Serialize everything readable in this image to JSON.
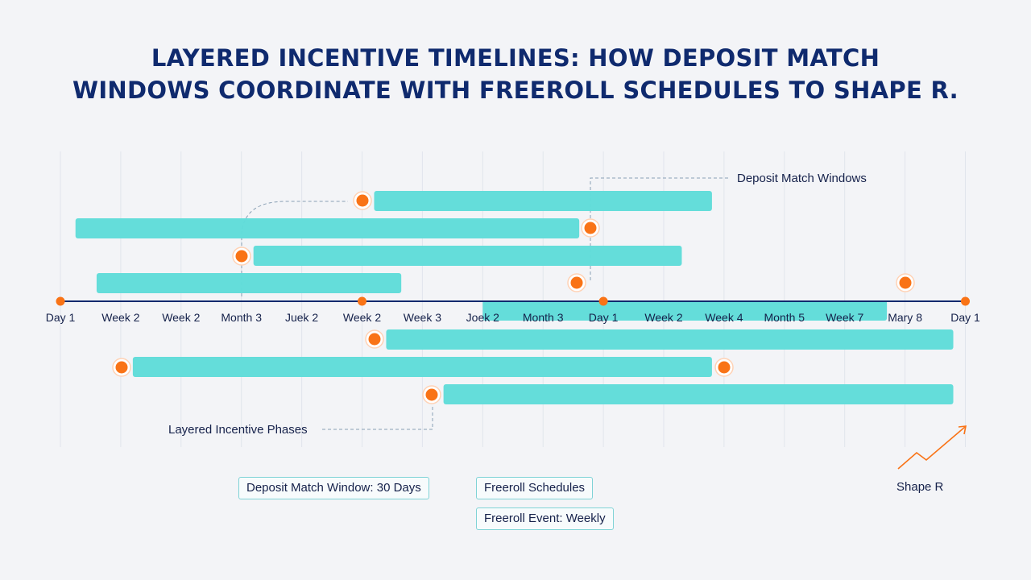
{
  "title": {
    "line1": "LAYERED INCENTIVE TIMELINES: HOW DEPOSIT MATCH",
    "line2": "WINDOWS COORDINATE WITH FREEROLL SCHEDULES TO SHAPE R."
  },
  "axis_ticks": [
    "Day 1",
    "Week 2",
    "Week 2",
    "Month 3",
    "Juek 2",
    "Week 2",
    "Week 3",
    "Joek 2",
    "Month 3",
    "Day 1",
    "Week 2",
    "Week 4",
    "Month 5",
    "Week 7",
    "Mary 8",
    "Day 1"
  ],
  "axis_markers": [
    0,
    5,
    9,
    15
  ],
  "bars_above": [
    {
      "start": 5.2,
      "end": 10.8
    },
    {
      "start": 0.25,
      "end": 8.6
    },
    {
      "start": 3.2,
      "end": 10.3
    },
    {
      "start": 0.6,
      "end": 5.65
    },
    {
      "start": 7.0,
      "end": 13.7
    }
  ],
  "bars_below": [
    {
      "start": 5.4,
      "end": 14.8
    },
    {
      "start": 1.2,
      "end": 10.8
    },
    {
      "start": 6.35,
      "end": 14.8
    }
  ],
  "callouts": {
    "deposit_match_windows": "Deposit Match Windows",
    "layered_incentive_phases": "Layered Incentive Phases",
    "shape_r": "Shape R"
  },
  "legend": {
    "deposit_match_window": "Deposit Match Window: 30 Days",
    "freeroll_schedules": "Freeroll Schedules",
    "freeroll_event": "Freeroll Event: Weekly"
  },
  "colors": {
    "bar": "#5fdcd9",
    "marker": "#f97316",
    "axis": "#0f2a6e",
    "title": "#0f2a6e",
    "guide": "#8aa0b4"
  }
}
